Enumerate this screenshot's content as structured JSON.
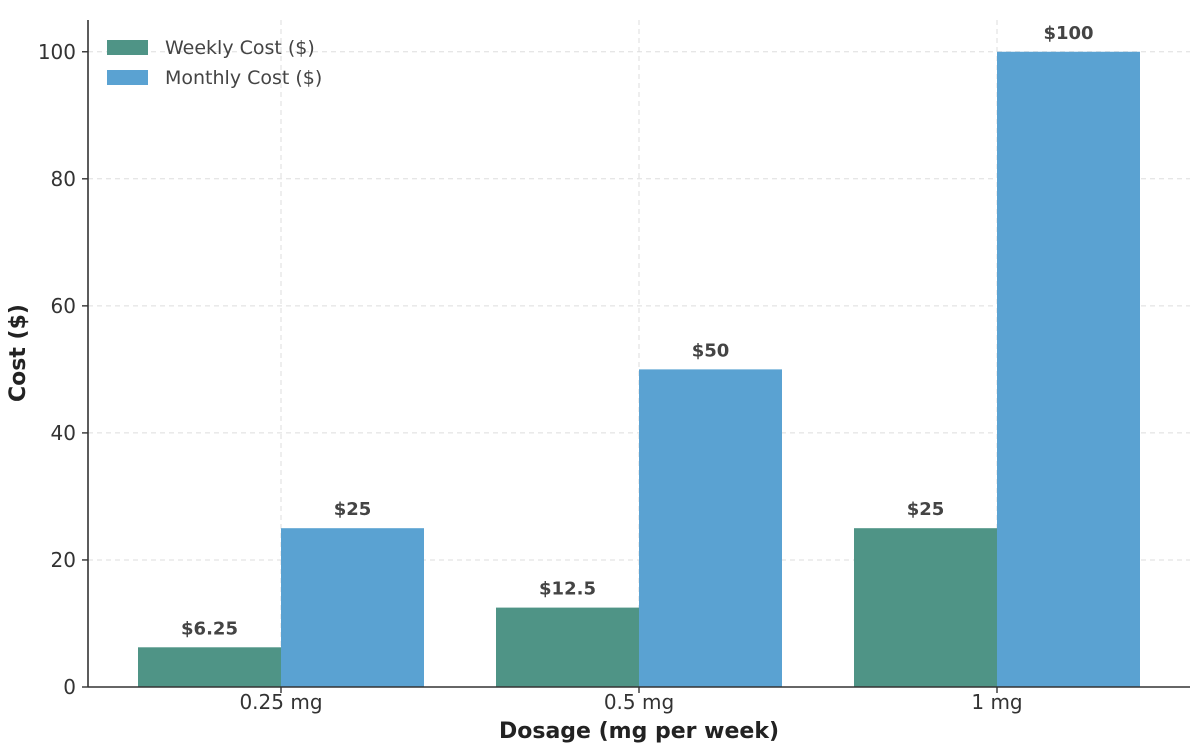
{
  "chart_data": {
    "type": "bar",
    "title": "",
    "xlabel": "Dosage (mg per week)",
    "ylabel": "Cost ($)",
    "categories": [
      "0.25 mg",
      "0.5 mg",
      "1 mg"
    ],
    "ylim": [
      0,
      105
    ],
    "yticks": [
      0,
      20,
      40,
      60,
      80,
      100
    ],
    "grid": true,
    "legend_position": "top-left",
    "series": [
      {
        "name": "Weekly Cost ($)",
        "color": "#4f9486",
        "values": [
          6.25,
          12.5,
          25
        ],
        "labels": [
          "$6.25",
          "$12.5",
          "$25"
        ]
      },
      {
        "name": "Monthly Cost ($)",
        "color": "#5aa2d2",
        "values": [
          25,
          50,
          100
        ],
        "labels": [
          "$25",
          "$50",
          "$100"
        ]
      }
    ]
  }
}
